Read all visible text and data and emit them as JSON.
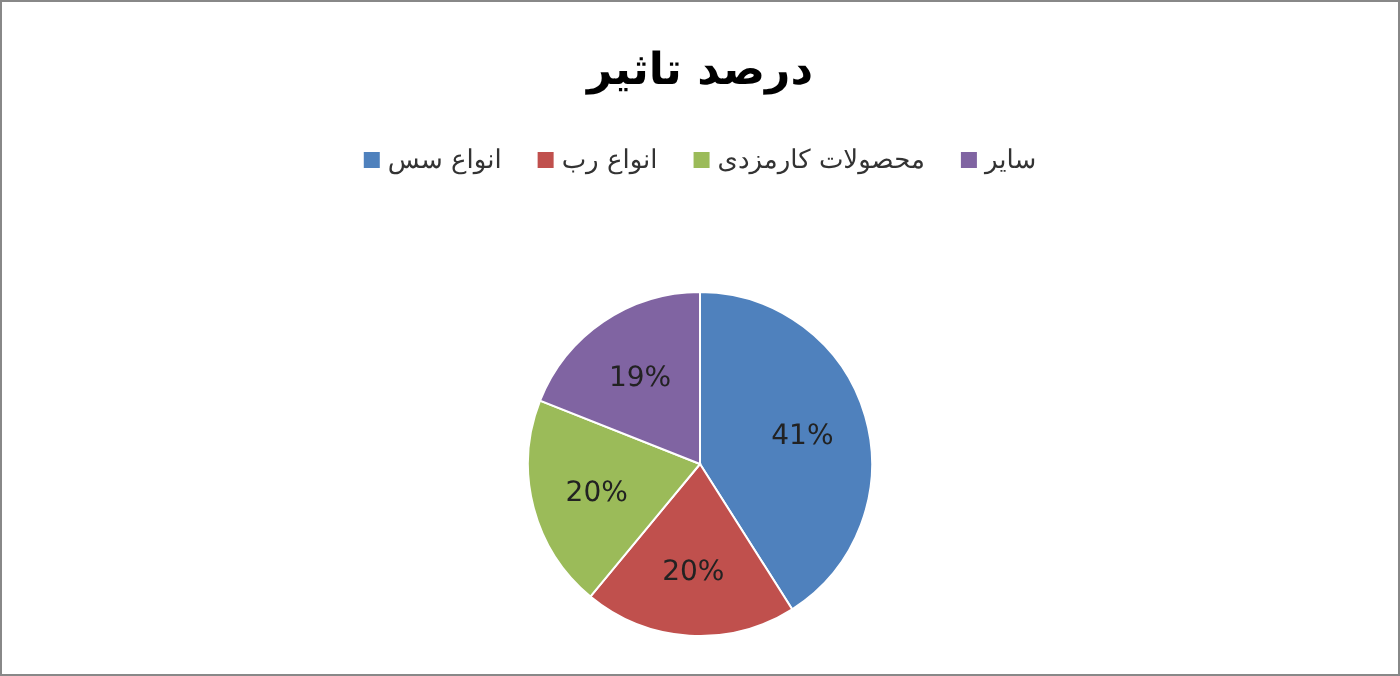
{
  "chart_data": {
    "type": "pie",
    "title": "درصد تاثیر",
    "categories": [
      "انواع سس",
      "انواع رب",
      "محصولات کارمزدی",
      "سایر"
    ],
    "values": [
      41,
      20,
      20,
      19
    ],
    "colors": [
      "#4f81bd",
      "#c0504d",
      "#9bbb59",
      "#8064a2"
    ],
    "value_labels": [
      "41%",
      "20%",
      "20%",
      "19%"
    ],
    "legend": "top"
  }
}
